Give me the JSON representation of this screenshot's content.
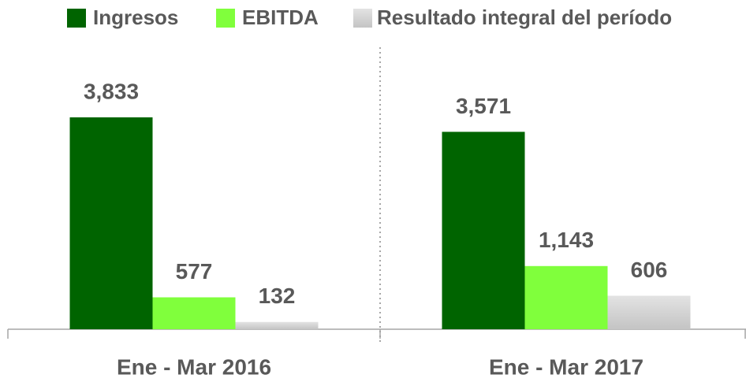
{
  "chart_data": {
    "type": "bar",
    "categories": [
      "Ene - Mar 2016",
      "Ene - Mar 2017"
    ],
    "series": [
      {
        "name": "Ingresos",
        "color": "#006400",
        "values": [
          3833,
          3571
        ],
        "value_labels": [
          "3,833",
          "3,571"
        ]
      },
      {
        "name": "EBITDA",
        "color": "#80ff3c",
        "values": [
          577,
          1143
        ],
        "value_labels": [
          "577",
          "1,143"
        ]
      },
      {
        "name": "Resultado integral del período",
        "color": "#cfcfcf",
        "values": [
          132,
          606
        ],
        "value_labels": [
          "132",
          "606"
        ]
      }
    ]
  }
}
